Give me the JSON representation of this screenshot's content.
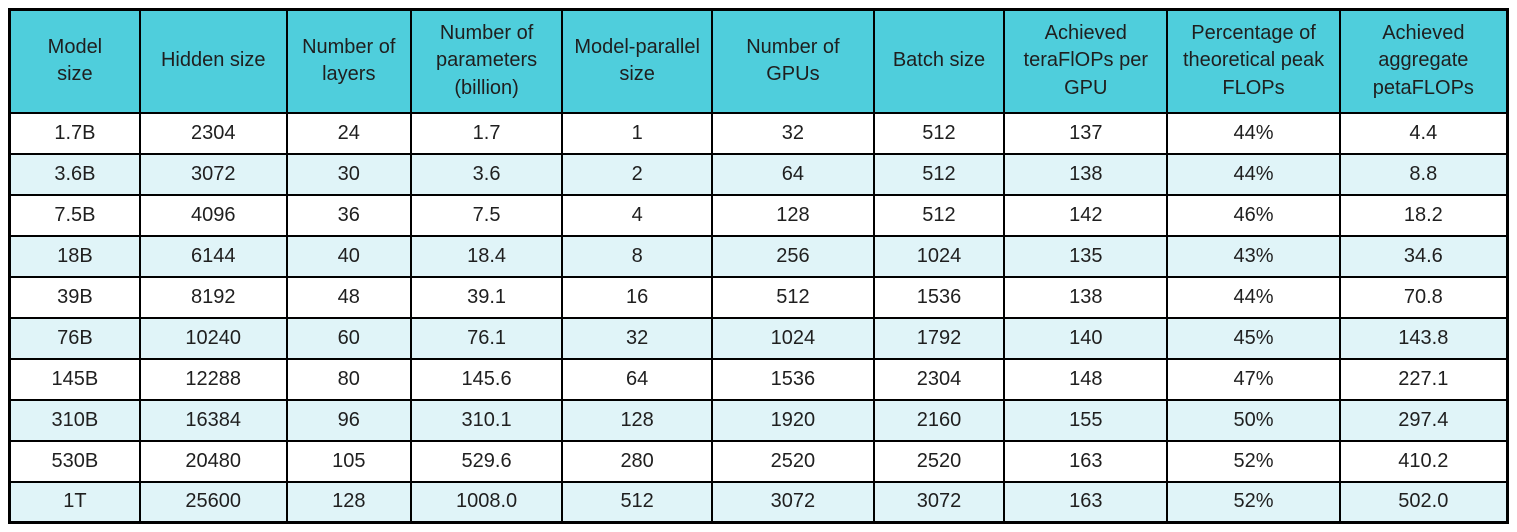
{
  "colors": {
    "header_bg": "#4FCEDC",
    "alt_row_bg": "#E0F4F8",
    "row_bg": "#FFFFFF",
    "border": "#000000",
    "text": "#1F1F1F"
  },
  "chart_data": {
    "type": "table",
    "title": "",
    "columns": [
      "Model size",
      "Hidden size",
      "Number of layers",
      "Number of parameters (billion)",
      "Model-parallel size",
      "Number of GPUs",
      "Batch size",
      "Achieved teraFlOPs per GPU",
      "Percentage of theoretical peak FLOPs",
      "Achieved aggregate petaFLOPs"
    ],
    "rows": [
      [
        "1.7B",
        "2304",
        "24",
        "1.7",
        "1",
        "32",
        "512",
        "137",
        "44%",
        "4.4"
      ],
      [
        "3.6B",
        "3072",
        "30",
        "3.6",
        "2",
        "64",
        "512",
        "138",
        "44%",
        "8.8"
      ],
      [
        "7.5B",
        "4096",
        "36",
        "7.5",
        "4",
        "128",
        "512",
        "142",
        "46%",
        "18.2"
      ],
      [
        "18B",
        "6144",
        "40",
        "18.4",
        "8",
        "256",
        "1024",
        "135",
        "43%",
        "34.6"
      ],
      [
        "39B",
        "8192",
        "48",
        "39.1",
        "16",
        "512",
        "1536",
        "138",
        "44%",
        "70.8"
      ],
      [
        "76B",
        "10240",
        "60",
        "76.1",
        "32",
        "1024",
        "1792",
        "140",
        "45%",
        "143.8"
      ],
      [
        "145B",
        "12288",
        "80",
        "145.6",
        "64",
        "1536",
        "2304",
        "148",
        "47%",
        "227.1"
      ],
      [
        "310B",
        "16384",
        "96",
        "310.1",
        "128",
        "1920",
        "2160",
        "155",
        "50%",
        "297.4"
      ],
      [
        "530B",
        "20480",
        "105",
        "529.6",
        "280",
        "2520",
        "2520",
        "163",
        "52%",
        "410.2"
      ],
      [
        "1T",
        "25600",
        "128",
        "1008.0",
        "512",
        "3072",
        "3072",
        "163",
        "52%",
        "502.0"
      ]
    ]
  }
}
